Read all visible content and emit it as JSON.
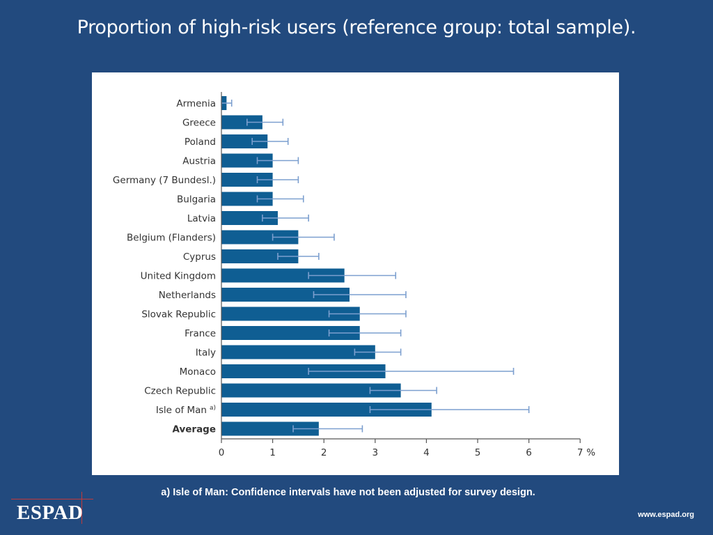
{
  "slide": {
    "title": "Proportion of high-risk users (reference group: total sample).",
    "footnote": "a) Isle of Man: Confidence intervals have not been adjusted for survey design.",
    "logo_text": "ESPAD",
    "website": "www.espad.org"
  },
  "colors": {
    "background": "#224a7e",
    "bar": "#0f5e93",
    "error_bar": "#7c9fcf",
    "axis": "#555555",
    "label": "#333333"
  },
  "chart_data": {
    "type": "bar",
    "orientation": "horizontal",
    "title": "",
    "xlabel": "",
    "ylabel": "",
    "unit": "%",
    "xlim": [
      0,
      7
    ],
    "ticks": [
      0,
      1,
      2,
      3,
      4,
      5,
      6,
      7
    ],
    "grid": false,
    "categories": [
      "Armenia",
      "Greece",
      "Poland",
      "Austria",
      "Germany (7 Bundesl.)",
      "Bulgaria",
      "Latvia",
      "Belgium (Flanders)",
      "Cyprus",
      "United Kingdom",
      "Netherlands",
      "Slovak Republic",
      "France",
      "Italy",
      "Monaco",
      "Czech Republic",
      "Isle of Man",
      "Average"
    ],
    "category_superscripts": [
      "",
      "",
      "",
      "",
      "",
      "",
      "",
      "",
      "",
      "",
      "",
      "",
      "",
      "",
      "",
      "",
      "a)",
      ""
    ],
    "bold_categories": [
      "Average"
    ],
    "values": [
      0.1,
      0.8,
      0.9,
      1.0,
      1.0,
      1.0,
      1.1,
      1.5,
      1.5,
      2.4,
      2.5,
      2.7,
      2.7,
      3.0,
      3.2,
      3.5,
      4.1,
      1.9
    ],
    "ci_low": [
      0.0,
      0.5,
      0.6,
      0.7,
      0.7,
      0.7,
      0.8,
      1.0,
      1.1,
      1.7,
      1.8,
      2.1,
      2.1,
      2.6,
      1.7,
      2.9,
      2.9,
      1.4
    ],
    "ci_high": [
      0.2,
      1.2,
      1.3,
      1.5,
      1.5,
      1.6,
      1.7,
      2.2,
      1.9,
      3.4,
      3.6,
      3.6,
      3.5,
      3.5,
      5.7,
      4.2,
      6.0,
      2.75
    ]
  }
}
